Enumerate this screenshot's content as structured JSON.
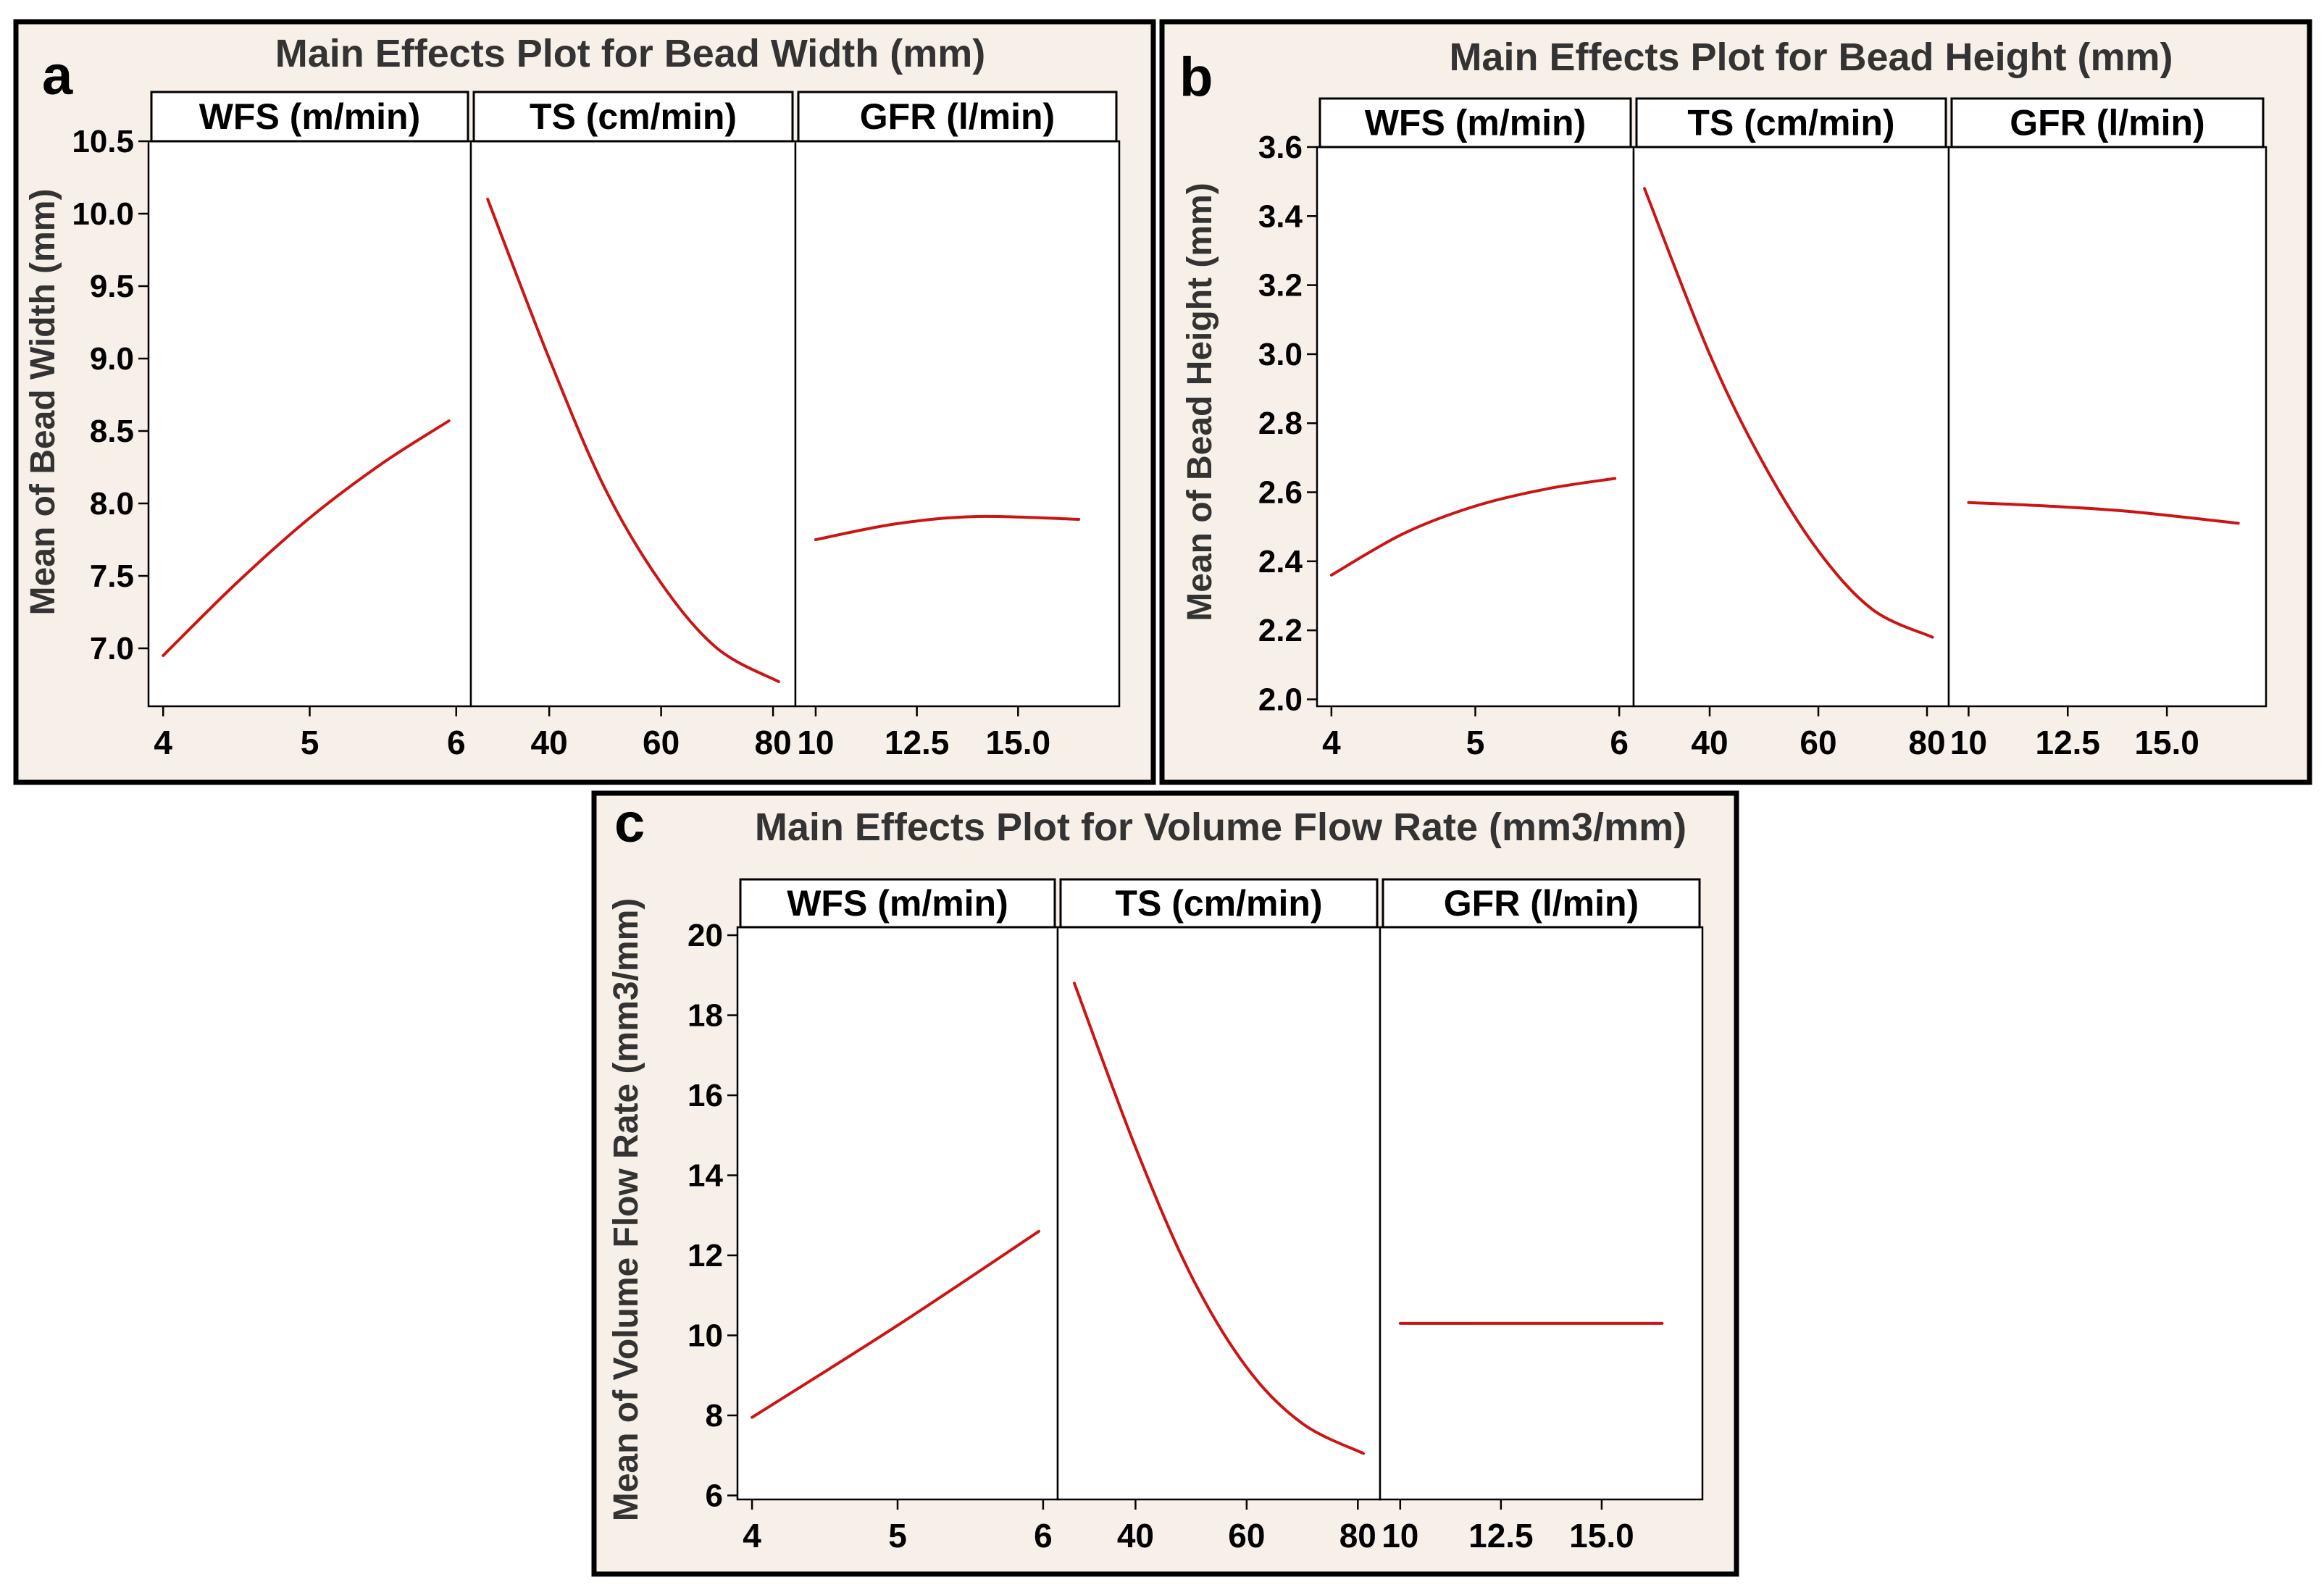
{
  "chart_data": [
    {
      "id": "a",
      "panel_letter": "a",
      "type": "line",
      "title": "Main Effects Plot for Bead Width (mm)",
      "ylabel": "Mean of Bead Width (mm)",
      "ylim": [
        6.6,
        10.5
      ],
      "yticks": [
        "7.0",
        "7.5",
        "8.0",
        "8.5",
        "9.0",
        "9.5",
        "10.0",
        "10.5"
      ],
      "facets": [
        {
          "name": "WFS (m/min)",
          "xlim": [
            3.9,
            6.1
          ],
          "xticks": [
            {
              "v": 4,
              "t": "4"
            },
            {
              "v": 5,
              "t": "5"
            },
            {
              "v": 6,
              "t": "6"
            }
          ],
          "x": [
            4.0,
            4.5,
            5.0,
            5.5,
            5.95
          ],
          "y": [
            6.95,
            7.45,
            7.9,
            8.28,
            8.57
          ]
        },
        {
          "name": "TS (cm/min)",
          "xlim": [
            26,
            84
          ],
          "xticks": [
            {
              "v": 40,
              "t": "40"
            },
            {
              "v": 60,
              "t": "60"
            },
            {
              "v": 80,
              "t": "80"
            }
          ],
          "x": [
            29,
            40,
            50,
            60,
            70,
            81
          ],
          "y": [
            10.1,
            9.0,
            8.1,
            7.45,
            7.0,
            6.77
          ]
        },
        {
          "name": "GFR (l/min)",
          "xlim": [
            9.5,
            17.5
          ],
          "xticks": [
            {
              "v": 10,
              "t": "10"
            },
            {
              "v": 12.5,
              "t": "12.5"
            },
            {
              "v": 15,
              "t": "15.0"
            }
          ],
          "x": [
            10.0,
            12.0,
            14.0,
            16.5
          ],
          "y": [
            7.75,
            7.86,
            7.91,
            7.89
          ]
        }
      ]
    },
    {
      "id": "b",
      "panel_letter": "b",
      "type": "line",
      "title": "Main Effects Plot for Bead Height (mm)",
      "ylabel": "Mean of Bead Height (mm)",
      "ylim": [
        1.98,
        3.6
      ],
      "yticks": [
        "2.0",
        "2.2",
        "2.4",
        "2.6",
        "2.8",
        "3.0",
        "3.2",
        "3.4",
        "3.6"
      ],
      "facets": [
        {
          "name": "WFS (m/min)",
          "xlim": [
            3.9,
            6.1
          ],
          "xticks": [
            {
              "v": 4,
              "t": "4"
            },
            {
              "v": 5,
              "t": "5"
            },
            {
              "v": 6,
              "t": "6"
            }
          ],
          "x": [
            4.0,
            4.5,
            5.0,
            5.5,
            5.97
          ],
          "y": [
            2.36,
            2.48,
            2.56,
            2.61,
            2.64
          ]
        },
        {
          "name": "TS (cm/min)",
          "xlim": [
            26,
            84
          ],
          "xticks": [
            {
              "v": 40,
              "t": "40"
            },
            {
              "v": 60,
              "t": "60"
            },
            {
              "v": 80,
              "t": "80"
            }
          ],
          "x": [
            28,
            40,
            50,
            60,
            70,
            81
          ],
          "y": [
            3.48,
            3.0,
            2.68,
            2.43,
            2.26,
            2.18
          ]
        },
        {
          "name": "GFR (l/min)",
          "xlim": [
            9.5,
            17.5
          ],
          "xticks": [
            {
              "v": 10,
              "t": "10"
            },
            {
              "v": 12.5,
              "t": "12.5"
            },
            {
              "v": 15,
              "t": "15.0"
            }
          ],
          "x": [
            10.0,
            12.0,
            14.0,
            16.8
          ],
          "y": [
            2.57,
            2.56,
            2.545,
            2.51
          ]
        }
      ]
    },
    {
      "id": "c",
      "panel_letter": "c",
      "type": "line",
      "title": "Main Effects Plot for Volume Flow Rate (mm3/mm)",
      "ylabel": "Mean of Volume Flow Rate (mm3/mm)",
      "ylim": [
        5.9,
        20.2
      ],
      "yticks": [
        "6",
        "8",
        "10",
        "12",
        "14",
        "16",
        "18",
        "20"
      ],
      "facets": [
        {
          "name": "WFS (m/min)",
          "xlim": [
            3.9,
            6.1
          ],
          "xticks": [
            {
              "v": 4,
              "t": "4"
            },
            {
              "v": 5,
              "t": "5"
            },
            {
              "v": 6,
              "t": "6"
            }
          ],
          "x": [
            4.0,
            5.0,
            5.97
          ],
          "y": [
            7.95,
            10.25,
            12.6
          ]
        },
        {
          "name": "TS (cm/min)",
          "xlim": [
            26,
            84
          ],
          "xticks": [
            {
              "v": 40,
              "t": "40"
            },
            {
              "v": 60,
              "t": "60"
            },
            {
              "v": 80,
              "t": "80"
            }
          ],
          "x": [
            29,
            40,
            50,
            60,
            70,
            81
          ],
          "y": [
            18.8,
            14.7,
            11.5,
            9.2,
            7.8,
            7.05
          ]
        },
        {
          "name": "GFR (l/min)",
          "xlim": [
            9.5,
            17.5
          ],
          "xticks": [
            {
              "v": 10,
              "t": "10"
            },
            {
              "v": 12.5,
              "t": "12.5"
            },
            {
              "v": 15,
              "t": "15.0"
            }
          ],
          "x": [
            10.0,
            13.0,
            16.5
          ],
          "y": [
            10.3,
            10.3,
            10.3
          ]
        }
      ]
    }
  ]
}
